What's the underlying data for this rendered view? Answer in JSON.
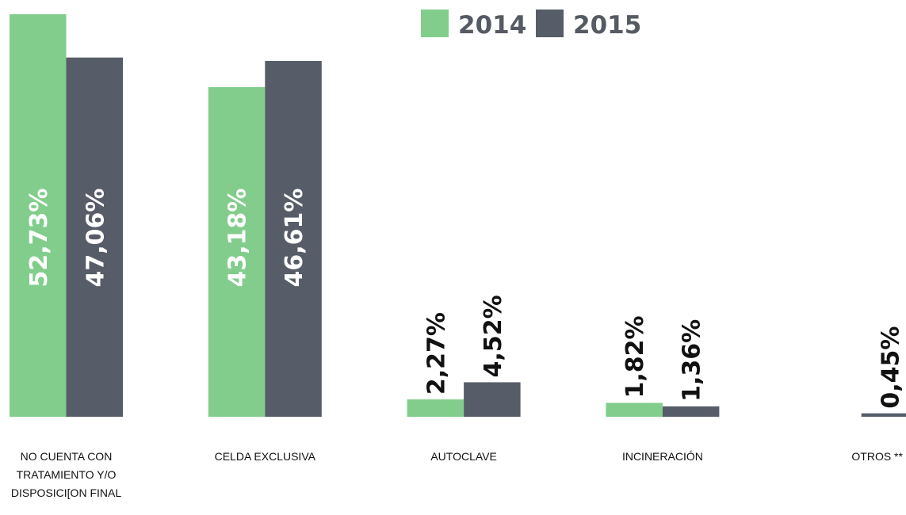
{
  "chart_data": {
    "type": "bar",
    "categories": [
      "NO CUENTA CON TRATAMIENTO Y/O DISPOSICI[ON FINAL",
      "CELDA EXCLUSIVA",
      "AUTOCLAVE",
      "INCINERACIÓN",
      "OTROS **"
    ],
    "series": [
      {
        "name": "2014",
        "color": "#82cd8c",
        "values": [
          52.73,
          43.18,
          2.27,
          1.82,
          null
        ],
        "value_labels": [
          "52,73%",
          "43,18%",
          "2,27%",
          "1,82%",
          null
        ]
      },
      {
        "name": "2015",
        "color": "#575d68",
        "values": [
          47.06,
          46.61,
          4.52,
          1.36,
          0.45
        ],
        "value_labels": [
          "47,06%",
          "46,61%",
          "4,52%",
          "1,36%",
          "0,45%"
        ]
      }
    ],
    "legend": "top"
  }
}
